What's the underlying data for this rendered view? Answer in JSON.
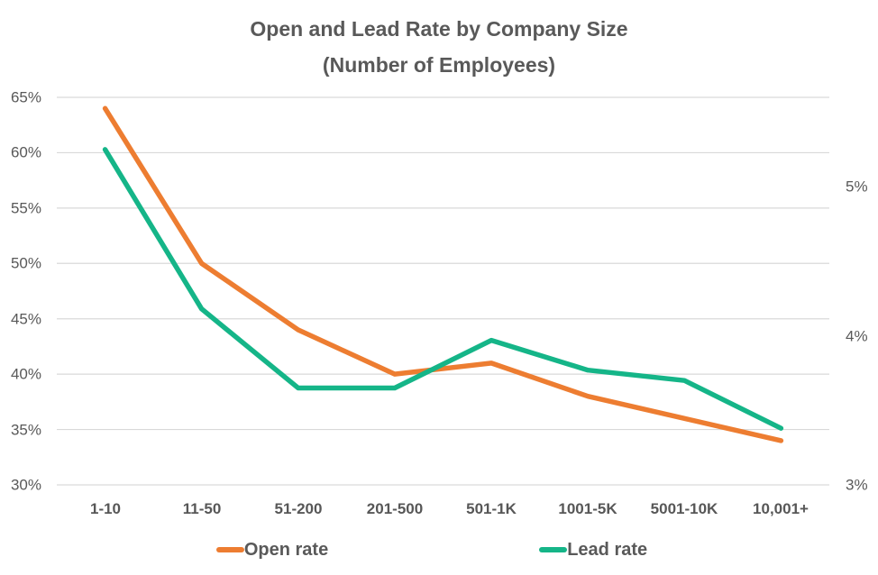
{
  "title": {
    "line1": "Open and Lead Rate by Company Size",
    "line2": "(Number of Employees)"
  },
  "chart_data": {
    "type": "line",
    "categories": [
      "1-10",
      "11-50",
      "51-200",
      "201-500",
      "501-1K",
      "1001-5K",
      "5001-10K",
      "10,001+"
    ],
    "series": [
      {
        "name": "Open rate",
        "axis": "left",
        "unit": "%",
        "color": "#ED7D31",
        "values": [
          64,
          50,
          44,
          40,
          41,
          38,
          36,
          34
        ]
      },
      {
        "name": "Lead rate",
        "axis": "right",
        "unit": "%",
        "color": "#15B588",
        "values": [
          5.25,
          4.18,
          3.65,
          3.65,
          3.97,
          3.77,
          3.7,
          3.38
        ]
      }
    ],
    "left_axis": {
      "min": 30,
      "max": 65,
      "ticks": [
        {
          "label": "65%",
          "value": 65
        },
        {
          "label": "60%",
          "value": 60
        },
        {
          "label": "55%",
          "value": 55
        },
        {
          "label": "50%",
          "value": 50
        },
        {
          "label": "45%",
          "value": 45
        },
        {
          "label": "40%",
          "value": 40
        },
        {
          "label": "35%",
          "value": 35
        },
        {
          "label": "30%",
          "value": 30
        }
      ]
    },
    "right_axis": {
      "min": 3,
      "max": 5.6,
      "ticks": [
        {
          "label": "5%",
          "value": 5
        },
        {
          "label": "4%",
          "value": 4
        },
        {
          "label": "3%",
          "value": 3
        }
      ]
    },
    "grid": "horizontal",
    "gridline_color": "#D9D9D9",
    "legend": {
      "position": "bottom",
      "entries": [
        {
          "label": "Open rate",
          "color": "#ED7D31"
        },
        {
          "label": "Lead rate",
          "color": "#15B588"
        }
      ]
    }
  }
}
